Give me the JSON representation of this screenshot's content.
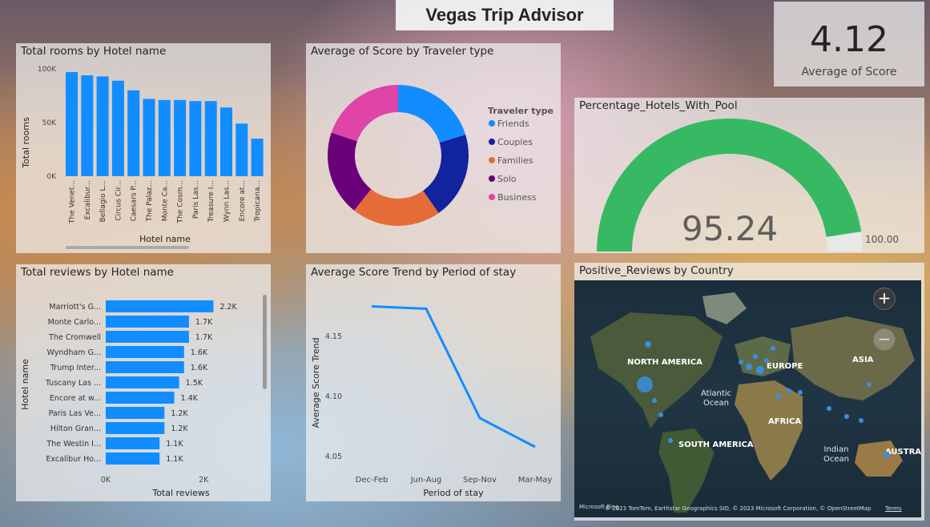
{
  "title": "Vegas Trip Advisor",
  "kpi": {
    "value": "4.12",
    "label": "Average of Score"
  },
  "rooms_chart": {
    "title": "Total rooms by Hotel name",
    "chart_data": {
      "type": "bar",
      "xlabel": "Hotel name",
      "ylabel": "Total rooms",
      "ylim": [
        0,
        100000
      ],
      "ticks": [
        "0K",
        "50K",
        "100K"
      ],
      "categories": [
        "The Venet...",
        "Excalibur...",
        "Bellagio L...",
        "Circus Cir...",
        "Caesars P...",
        "The Palaz...",
        "Monte Ca...",
        "The Cosm...",
        "Paris Las...",
        "Treasure I...",
        "Wynn Las...",
        "Encore at...",
        "Tropicana..."
      ],
      "values": [
        97000,
        94000,
        93000,
        89000,
        80000,
        72000,
        71000,
        71000,
        70000,
        70000,
        64000,
        49000,
        35000
      ],
      "color": "#118DFF"
    }
  },
  "traveler_chart": {
    "title": "Average of Score by Traveler type",
    "chart_data": {
      "type": "pie",
      "legend_title": "Traveler type",
      "labels": [
        "Friends",
        "Couples",
        "Families",
        "Solo",
        "Business"
      ],
      "values": [
        4.15,
        4.1,
        4.2,
        4.0,
        4.05
      ],
      "colors": [
        "#118DFF",
        "#12239E",
        "#E66C37",
        "#6B007B",
        "#E044A7"
      ]
    }
  },
  "pool_chart": {
    "title": "Percentage_Hotels_With_Pool",
    "chart_data": {
      "type": "gauge",
      "value": 95.24,
      "value_label": "95.24",
      "max": 100,
      "max_label": "100.00",
      "color": "#37B964"
    }
  },
  "reviews_chart": {
    "title": "Total reviews by Hotel name",
    "chart_data": {
      "type": "bar",
      "orientation": "horizontal",
      "xlabel": "Total reviews",
      "ylabel": "Hotel name",
      "xlim": [
        0,
        2700
      ],
      "ticks": [
        "0K",
        "2K"
      ],
      "categories": [
        "Marriott's G...",
        "Monte Carlo...",
        "The Cromwell",
        "Wyndham G...",
        "Trump Inter...",
        "Tuscany Las ...",
        "Encore at w...",
        "Paris Las Ve...",
        "Hilton Gran...",
        "The Westin I...",
        "Excalibur Ho..."
      ],
      "values": [
        2200,
        1700,
        1700,
        1600,
        1600,
        1500,
        1400,
        1200,
        1200,
        1100,
        1100
      ],
      "data_labels": [
        "2.2K",
        "1.7K",
        "1.7K",
        "1.6K",
        "1.6K",
        "1.5K",
        "1.4K",
        "1.2K",
        "1.2K",
        "1.1K",
        "1.1K"
      ],
      "color": "#118DFF"
    }
  },
  "trend_chart": {
    "title": "Average Score Trend by Period of stay",
    "chart_data": {
      "type": "line",
      "xlabel": "Period of stay",
      "ylabel": "Average Score Trend",
      "categories": [
        "Dec-Feb",
        "Jun-Aug",
        "Sep-Nov",
        "Mar-May"
      ],
      "values": [
        4.175,
        4.173,
        4.082,
        4.058
      ],
      "ylim": [
        4.04,
        4.19
      ],
      "ticks": [
        4.05,
        4.1,
        4.15
      ],
      "tick_labels": [
        "4.05",
        "4.10",
        "4.15"
      ],
      "color": "#118DFF"
    }
  },
  "map_chart": {
    "title": "Positive_Reviews by Country",
    "labels": {
      "na": "NORTH AMERICA",
      "eu": "EUROPE",
      "asia": "ASIA",
      "atlantic": "Atlantic Ocean",
      "africa": "AFRICA",
      "sa": "SOUTH AMERICA",
      "indian": "Indian Ocean",
      "aus": "AUSTRAL"
    },
    "zoom_in": "+",
    "zoom_out": "−",
    "attribution": "© 2023 TomTom, Earthstar Geographics SIO, © 2023 Microsoft Corporation, © OpenStreetMap",
    "terms": "Terms",
    "brand": "Microsoft Bing"
  }
}
